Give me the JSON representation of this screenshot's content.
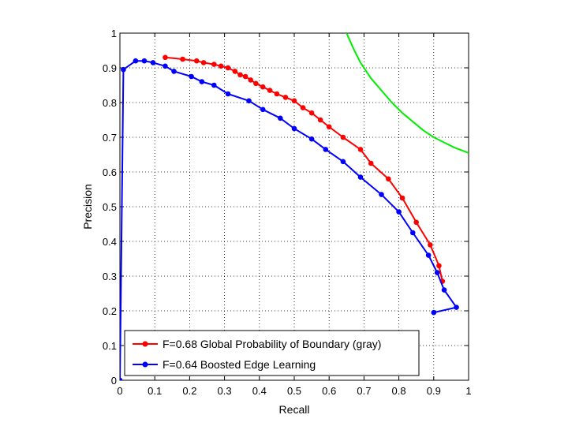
{
  "chart_data": {
    "type": "line",
    "title": "",
    "xlabel": "Recall",
    "ylabel": "Precision",
    "xlim": [
      0,
      1
    ],
    "ylim": [
      0,
      1
    ],
    "grid": true,
    "legend_position": "bottom-left",
    "x_ticks": [
      "0",
      "0.1",
      "0.2",
      "0.3",
      "0.4",
      "0.5",
      "0.6",
      "0.7",
      "0.8",
      "0.9",
      "1"
    ],
    "y_ticks": [
      "0",
      "0.1",
      "0.2",
      "0.3",
      "0.4",
      "0.5",
      "0.6",
      "0.7",
      "0.8",
      "0.9",
      "1"
    ],
    "series": [
      {
        "name": "F=0.68 Global Probability of Boundary (gray)",
        "color": "#ff0000",
        "markers": true,
        "x": [
          0.13,
          0.18,
          0.22,
          0.24,
          0.27,
          0.29,
          0.31,
          0.33,
          0.345,
          0.36,
          0.375,
          0.39,
          0.41,
          0.43,
          0.45,
          0.475,
          0.5,
          0.525,
          0.55,
          0.575,
          0.6,
          0.64,
          0.69,
          0.72,
          0.77,
          0.81,
          0.85,
          0.89,
          0.915,
          0.925
        ],
        "y": [
          0.93,
          0.925,
          0.92,
          0.915,
          0.91,
          0.905,
          0.9,
          0.89,
          0.88,
          0.875,
          0.865,
          0.855,
          0.845,
          0.835,
          0.825,
          0.815,
          0.805,
          0.785,
          0.77,
          0.75,
          0.73,
          0.7,
          0.665,
          0.625,
          0.58,
          0.525,
          0.455,
          0.39,
          0.33,
          0.285
        ]
      },
      {
        "name": "F=0.64 Boosted Edge Learning",
        "color": "#0000ff",
        "markers": true,
        "x": [
          0.0,
          0.01,
          0.045,
          0.07,
          0.095,
          0.13,
          0.155,
          0.205,
          0.235,
          0.27,
          0.31,
          0.37,
          0.41,
          0.46,
          0.5,
          0.55,
          0.59,
          0.64,
          0.69,
          0.75,
          0.8,
          0.84,
          0.885,
          0.91,
          0.93,
          0.965,
          0.9
        ],
        "y": [
          0.0,
          0.895,
          0.92,
          0.92,
          0.915,
          0.905,
          0.89,
          0.875,
          0.86,
          0.85,
          0.825,
          0.805,
          0.78,
          0.755,
          0.725,
          0.695,
          0.665,
          0.63,
          0.585,
          0.535,
          0.485,
          0.425,
          0.36,
          0.31,
          0.26,
          0.21,
          0.195
        ]
      },
      {
        "name": "",
        "color": "#00ee00",
        "markers": false,
        "x": [
          0.65,
          0.67,
          0.69,
          0.72,
          0.75,
          0.78,
          0.81,
          0.84,
          0.87,
          0.9,
          0.93,
          0.96,
          1.0
        ],
        "y": [
          1.0,
          0.955,
          0.915,
          0.87,
          0.835,
          0.8,
          0.77,
          0.745,
          0.72,
          0.7,
          0.685,
          0.67,
          0.655
        ]
      }
    ]
  }
}
